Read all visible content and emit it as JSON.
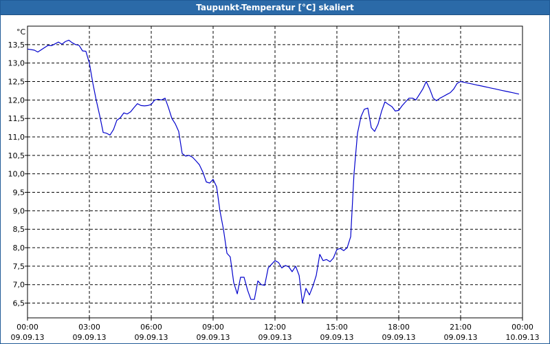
{
  "window": {
    "title": "Taupunkt-Temperatur [°C] skaliert"
  },
  "chart_data": {
    "type": "line",
    "title": "Taupunkt-Temperatur [°C] skaliert",
    "ylabel": "°C",
    "xlabel": "",
    "ylim": [
      6.1,
      14.0
    ],
    "xlim": [
      0,
      24
    ],
    "grid": true,
    "y_ticks": [
      "13,5",
      "13,0",
      "12,5",
      "12,0",
      "11,5",
      "11,0",
      "10,5",
      "10,0",
      "9,5",
      "9,0",
      "8,5",
      "8,0",
      "7,5",
      "7,0",
      "6,5"
    ],
    "y_tick_values": [
      13.5,
      13.0,
      12.5,
      12.0,
      11.5,
      11.0,
      10.5,
      10.0,
      9.5,
      9.0,
      8.5,
      8.0,
      7.5,
      7.0,
      6.5
    ],
    "x_tick_values": [
      0,
      3,
      6,
      9,
      12,
      15,
      18,
      21,
      24
    ],
    "x_ticks": [
      {
        "time": "00:00",
        "date": "09.09.13"
      },
      {
        "time": "03:00",
        "date": "09.09.13"
      },
      {
        "time": "06:00",
        "date": "09.09.13"
      },
      {
        "time": "09:00",
        "date": "09.09.13"
      },
      {
        "time": "12:00",
        "date": "09.09.13"
      },
      {
        "time": "15:00",
        "date": "09.09.13"
      },
      {
        "time": "18:00",
        "date": "09.09.13"
      },
      {
        "time": "21:00",
        "date": "09.09.13"
      },
      {
        "time": "00:00",
        "date": "10.09.13"
      }
    ],
    "series": [
      {
        "color": "#0000cc",
        "x": [
          0,
          0.33,
          0.5,
          0.83,
          1.0,
          1.17,
          1.33,
          1.5,
          1.67,
          1.83,
          2.0,
          2.17,
          2.33,
          2.5,
          2.67,
          2.83,
          3.0,
          3.17,
          3.33,
          3.5,
          3.67,
          3.83,
          4.0,
          4.17,
          4.33,
          4.5,
          4.67,
          4.83,
          5.0,
          5.17,
          5.33,
          5.5,
          5.67,
          5.83,
          6.0,
          6.17,
          6.33,
          6.5,
          6.67,
          6.83,
          7.0,
          7.17,
          7.33,
          7.5,
          7.67,
          7.83,
          8.0,
          8.17,
          8.33,
          8.5,
          8.67,
          8.83,
          9.0,
          9.17,
          9.33,
          9.5,
          9.67,
          9.83,
          10.0,
          10.17,
          10.33,
          10.5,
          10.67,
          10.83,
          11.0,
          11.17,
          11.33,
          11.5,
          11.67,
          11.83,
          12.0,
          12.17,
          12.33,
          12.5,
          12.67,
          12.83,
          13.0,
          13.17,
          13.33,
          13.5,
          13.67,
          13.83,
          14.0,
          14.17,
          14.33,
          14.5,
          14.67,
          14.83,
          15.0,
          15.17,
          15.33,
          15.5,
          15.67,
          15.83,
          16.0,
          16.17,
          16.33,
          16.5,
          16.67,
          16.83,
          17.0,
          17.17,
          17.33,
          17.5,
          17.67,
          17.83,
          18.0,
          18.17,
          18.33,
          18.5,
          18.67,
          18.83,
          19.0,
          19.17,
          19.33,
          19.5,
          19.67,
          19.83,
          20.0,
          20.17,
          20.33,
          20.5,
          20.67,
          20.83,
          21.0,
          21.17,
          21.33,
          21.5,
          21.67,
          21.83,
          22.0,
          22.17,
          22.33,
          22.5,
          22.67,
          22.83,
          23.0,
          23.17,
          23.33,
          23.5,
          23.67,
          23.83
        ],
        "values": [
          13.38,
          13.35,
          13.3,
          13.42,
          13.48,
          13.47,
          13.52,
          13.57,
          13.51,
          13.58,
          13.62,
          13.55,
          13.5,
          13.48,
          13.33,
          13.32,
          13.0,
          12.45,
          12.0,
          11.58,
          11.12,
          11.1,
          11.05,
          11.2,
          11.45,
          11.52,
          11.65,
          11.62,
          11.68,
          11.8,
          11.9,
          11.85,
          11.84,
          11.85,
          11.88,
          12.0,
          12.02,
          12.0,
          12.05,
          11.8,
          11.5,
          11.35,
          11.15,
          10.55,
          10.48,
          10.5,
          10.45,
          10.35,
          10.25,
          10.05,
          9.78,
          9.75,
          9.85,
          9.65,
          9.0,
          8.5,
          7.85,
          7.75,
          7.05,
          6.75,
          7.2,
          7.2,
          6.85,
          6.6,
          6.6,
          7.1,
          7.0,
          6.98,
          7.45,
          7.55,
          7.65,
          7.6,
          7.45,
          7.52,
          7.48,
          7.35,
          7.5,
          7.25,
          6.5,
          6.9,
          6.72,
          6.95,
          7.25,
          7.82,
          7.65,
          7.68,
          7.62,
          7.72,
          7.95,
          7.98,
          7.92,
          8.0,
          8.3,
          10.0,
          11.1,
          11.55,
          11.75,
          11.78,
          11.25,
          11.15,
          11.35,
          11.7,
          11.95,
          11.88,
          11.82,
          11.7,
          11.72,
          11.85,
          11.95,
          12.05,
          12.05,
          12.0,
          12.15,
          12.3,
          12.5,
          12.3,
          12.05,
          11.98,
          12.05,
          12.1,
          12.15,
          12.2,
          12.3,
          12.45,
          12.5,
          12.48,
          12.46,
          12.44,
          12.42,
          12.4,
          12.38,
          12.36,
          12.34,
          12.32,
          12.3,
          12.28,
          12.26,
          12.24,
          12.22,
          12.2,
          12.18,
          12.16
        ]
      }
    ]
  }
}
